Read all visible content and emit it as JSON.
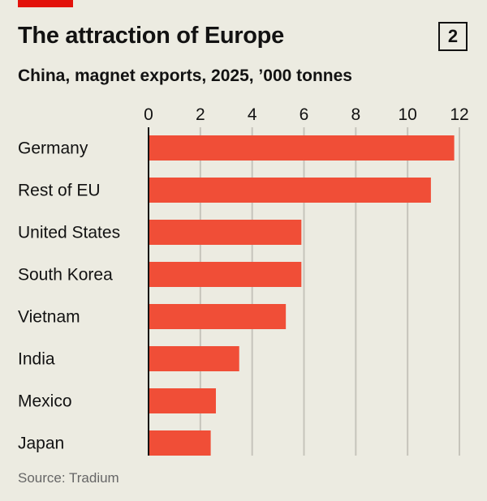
{
  "header": {
    "title": "The attraction of Europe",
    "chart_number": "2",
    "subtitle": "China, magnet exports, 2025, ’000 tonnes"
  },
  "footer": {
    "source": "Source: Tradium"
  },
  "colors": {
    "bar": "#f04e37",
    "background": "#ecebe1",
    "accent": "#e3120b"
  },
  "chart_data": {
    "type": "bar",
    "orientation": "horizontal",
    "title": "The attraction of Europe",
    "subtitle": "China, magnet exports, 2025, ’000 tonnes",
    "categories": [
      "Germany",
      "Rest of EU",
      "United States",
      "South Korea",
      "Vietnam",
      "India",
      "Mexico",
      "Japan"
    ],
    "values": [
      11.8,
      10.9,
      5.9,
      5.9,
      5.3,
      3.5,
      2.6,
      2.4
    ],
    "xlim": [
      0,
      12
    ],
    "xticks": [
      "0",
      "2",
      "4",
      "6",
      "8",
      "10",
      "12"
    ],
    "grid": true,
    "tick_position": "top"
  }
}
